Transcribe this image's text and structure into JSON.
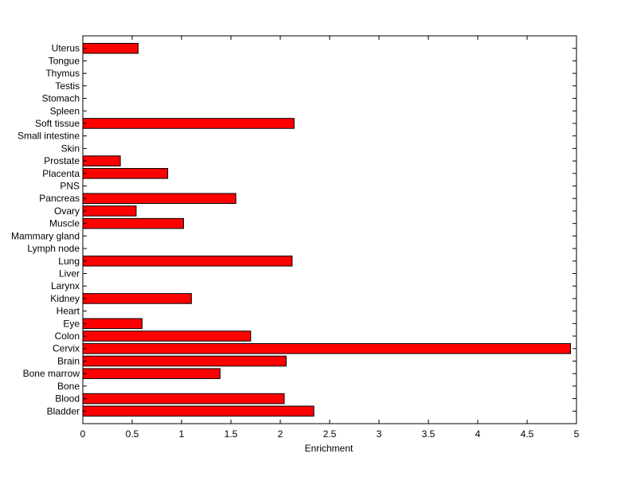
{
  "chart_data": {
    "type": "bar",
    "orientation": "horizontal",
    "title": "",
    "xlabel": "Enrichment",
    "ylabel": "",
    "xlim": [
      0,
      5
    ],
    "xticks": [
      0,
      0.5,
      1,
      1.5,
      2,
      2.5,
      3,
      3.5,
      4,
      4.5,
      5
    ],
    "xtick_labels": [
      "0",
      "0.5",
      "1",
      "1.5",
      "2",
      "2.5",
      "3",
      "3.5",
      "4",
      "4.5",
      "5"
    ],
    "grid": false,
    "bar_color": "#ff0000",
    "edge_color": "#000000",
    "categories": [
      "Bladder",
      "Blood",
      "Bone",
      "Bone marrow",
      "Brain",
      "Cervix",
      "Colon",
      "Eye",
      "Heart",
      "Kidney",
      "Larynx",
      "Liver",
      "Lung",
      "Lymph node",
      "Mammary gland",
      "Muscle",
      "Ovary",
      "Pancreas",
      "PNS",
      "Placenta",
      "Prostate",
      "Skin",
      "Small intestine",
      "Soft tissue",
      "Spleen",
      "Stomach",
      "Testis",
      "Thymus",
      "Tongue",
      "Uterus"
    ],
    "values": [
      2.34,
      2.04,
      0,
      1.39,
      2.06,
      4.94,
      1.7,
      0.6,
      0,
      1.1,
      0,
      0,
      2.12,
      0,
      0,
      1.02,
      0.54,
      1.55,
      0,
      0.86,
      0.38,
      0,
      0,
      2.14,
      0,
      0,
      0,
      0,
      0,
      0.56
    ]
  }
}
